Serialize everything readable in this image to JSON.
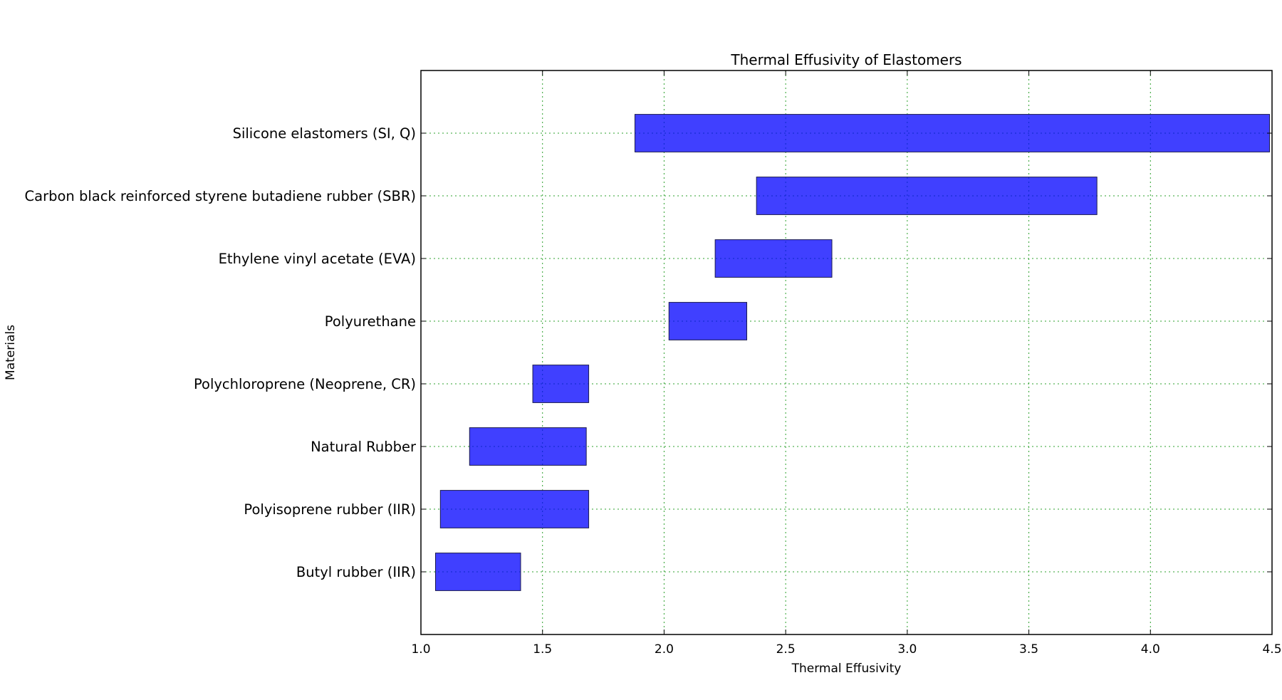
{
  "chart_data": {
    "type": "bar",
    "orientation": "horizontal-range",
    "title": "Thermal Effusivity of Elastomers",
    "xlabel": "Thermal Effusivity",
    "ylabel": "Materials",
    "xlim": [
      1.0,
      4.5
    ],
    "xticks": [
      "1.0",
      "1.5",
      "2.0",
      "2.5",
      "3.0",
      "3.5",
      "4.0",
      "4.5"
    ],
    "grid": true,
    "bar_color": "#0000ff",
    "bar_opacity": 0.75,
    "grid_color": "#2ca02c",
    "categories": [
      "Butyl rubber (IIR)",
      "Polyisoprene rubber (IIR)",
      "Natural Rubber",
      "Polychloroprene (Neoprene, CR)",
      "Polyurethane",
      "Ethylene vinyl acetate (EVA)",
      "Carbon black reinforced styrene butadiene rubber (SBR)",
      "Silicone elastomers (SI, Q)"
    ],
    "ranges": [
      [
        1.06,
        1.41
      ],
      [
        1.08,
        1.69
      ],
      [
        1.2,
        1.68
      ],
      [
        1.46,
        1.69
      ],
      [
        2.02,
        2.34
      ],
      [
        2.21,
        2.69
      ],
      [
        2.38,
        3.78
      ],
      [
        1.88,
        4.49
      ]
    ]
  }
}
